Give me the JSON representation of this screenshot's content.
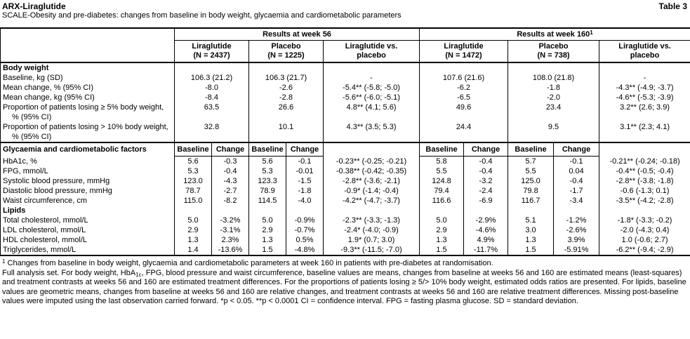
{
  "header": {
    "title": "ARX-Liraglutide",
    "table_label": "Table 3",
    "subtitle": "SCALE-Obesity and pre-diabetes: changes from baseline in body weight, glycaemia and cardiometabolic parameters"
  },
  "table": {
    "groups": [
      {
        "label": "Results at week 56",
        "sup": ""
      },
      {
        "label": "Results at week 160",
        "sup": "1"
      }
    ],
    "columns": [
      {
        "line1": "Liraglutide",
        "line2": "(N = 2437)"
      },
      {
        "line1": "Placebo",
        "line2": "(N = 1225)"
      },
      {
        "line1": "Liraglutide vs.",
        "line2": "placebo"
      },
      {
        "line1": "Liraglutide",
        "line2": "(N = 1472)"
      },
      {
        "line1": "Placebo",
        "line2": "(N = 738)"
      },
      {
        "line1": "Liraglutide vs.",
        "line2": "placebo"
      }
    ],
    "rows": [
      {
        "type": "section",
        "layout": "wide",
        "label": "Body weight",
        "cells": [
          "",
          "",
          "",
          "",
          "",
          ""
        ]
      },
      {
        "type": "data",
        "layout": "wide",
        "label": "Baseline, kg (SD)",
        "cells": [
          "106.3 (21.2)",
          "106.3 (21.7)",
          "-",
          "107.6 (21.6)",
          "108.0 (21.8)",
          "-"
        ]
      },
      {
        "type": "data",
        "layout": "wide",
        "label": "Mean change, % (95% CI)",
        "cells": [
          "-8.0",
          "-2.6",
          "-5.4** (-5.8; -5.0)",
          "-6.2",
          "-1.8",
          "-4.3** (-4.9; -3.7)"
        ]
      },
      {
        "type": "data",
        "layout": "wide",
        "label": "Mean change, kg (95% CI)",
        "cells": [
          "-8.4",
          "-2.8",
          "-5.6** (-6.0; -5.1)",
          "-6.5",
          "-2.0",
          "-4.6** (-5.3; -3.9)"
        ]
      },
      {
        "type": "data",
        "layout": "wide",
        "hang": true,
        "label": "Proportion of patients losing ≥ 5% body weight, % (95% CI)",
        "cells": [
          "63.5",
          "26.6",
          "4.8** (4.1; 5.6)",
          "49.6",
          "23.4",
          "3.2** (2.6; 3.9)"
        ]
      },
      {
        "type": "data",
        "layout": "wide",
        "hang": true,
        "label": "Proportion of patients losing > 10% body weight, % (95% CI)",
        "cells": [
          "32.8",
          "10.1",
          "4.3** (3.5; 5.3)",
          "24.4",
          "9.5",
          "3.1** (2.3; 4.1)"
        ]
      },
      {
        "type": "subhead",
        "layout": "split",
        "label": "Glycaemia and cardiometabolic factors",
        "cells": [
          "Baseline",
          "Change",
          "Baseline",
          "Change",
          "",
          "Baseline",
          "Change",
          "Baseline",
          "Change",
          ""
        ]
      },
      {
        "type": "data",
        "layout": "split",
        "label": "HbA1c, %",
        "cells": [
          "5.6",
          "-0.3",
          "5.6",
          "-0.1",
          "-0.23** (-0.25; -0.21)",
          "5.8",
          "-0.4",
          "5.7",
          "-0.1",
          "-0.21** (-0.24; -0.18)"
        ]
      },
      {
        "type": "data",
        "layout": "split",
        "label": "FPG, mmol/L",
        "cells": [
          "5.3",
          "-0.4",
          "5.3",
          "-0.01",
          "-0.38** (-0.42; -0.35)",
          "5.5",
          "-0.4",
          "5.5",
          "0.04",
          "-0.4** (-0.5; -0.4)"
        ]
      },
      {
        "type": "data",
        "layout": "split",
        "label": "Systolic blood pressure, mmHg",
        "cells": [
          "123.0",
          "-4.3",
          "123.3",
          "-1.5",
          "-2.8** (-3.6; -2.1)",
          "124.8",
          "-3.2",
          "125.0",
          "-0.4",
          "-2.8** (-3.8; -1.8)"
        ]
      },
      {
        "type": "data",
        "layout": "split",
        "label": "Diastolic blood pressure, mmHg",
        "cells": [
          "78.7",
          "-2.7",
          "78.9",
          "-1.8",
          "-0.9* (-1.4; -0.4)",
          "79.4",
          "-2.4",
          "79.8",
          "-1.7",
          "-0.6 (-1.3; 0.1)"
        ]
      },
      {
        "type": "data",
        "layout": "split",
        "label": "Waist circumference, cm",
        "cells": [
          "115.0",
          "-8.2",
          "114.5",
          "-4.0",
          "-4.2** (-4.7; -3.7)",
          "116.6",
          "-6.9",
          "116.7",
          "-3.4",
          "-3.5** (-4.2; -2.8)"
        ]
      },
      {
        "type": "section",
        "layout": "split",
        "label": "Lipids",
        "cells": [
          "",
          "",
          "",
          "",
          "",
          "",
          "",
          "",
          "",
          ""
        ]
      },
      {
        "type": "data",
        "layout": "split",
        "label": "Total cholesterol, mmol/L",
        "cells": [
          "5.0",
          "-3.2%",
          "5.0",
          "-0.9%",
          "-2.3** (-3.3; -1.3)",
          "5.0",
          "-2.9%",
          "5.1",
          "-1.2%",
          "-1.8* (-3.3; -0.2)"
        ]
      },
      {
        "type": "data",
        "layout": "split",
        "label": "LDL cholesterol, mmol/L",
        "cells": [
          "2.9",
          "-3.1%",
          "2.9",
          "-0.7%",
          "-2.4* (-4.0; -0.9)",
          "2.9",
          "-4.6%",
          "3.0",
          "-2.6%",
          "-2.0 (-4.3; 0.4)"
        ]
      },
      {
        "type": "data",
        "layout": "split",
        "label": "HDL cholesterol, mmol/L",
        "cells": [
          "1.3",
          "2.3%",
          "1.3",
          "0.5%",
          "1.9* (0.7; 3.0)",
          "1.3",
          "4.9%",
          "1.3",
          "3.9%",
          "1.0 (-0.6; 2.7)"
        ]
      },
      {
        "type": "data",
        "layout": "split",
        "label": "Triglycerides, mmol/L",
        "cells": [
          "1.4",
          "-13.6%",
          "1.5",
          "-4.8%",
          "-9.3** (-11.5; -7.0)",
          "1.5",
          "-11.7%",
          "1.5",
          "-5.91%",
          "-6.2** (-9.4; -2.9)"
        ]
      }
    ]
  },
  "footnote": {
    "marker": "1",
    "line1": " Changes from baseline in body weight, glycaemia and cardiometabolic parameters at week 160 in patients with pre-diabetes at randomisation.",
    "body_pre": "Full analysis set. For body weight, HbA",
    "body_sub": "1c",
    "body_post": ", FPG, blood pressure and waist circumference, baseline values are means, changes from baseline at weeks 56 and 160 are estimated means (least-squares) and treatment contrasts at weeks 56 and 160 are estimated treatment differences. For the proportions of patients losing ≥ 5/> 10% body weight, estimated odds ratios are presented. For lipids, baseline values are geometric means, changes from baseline at weeks 56 and 160 are relative changes, and treatment contrasts at weeks 56 and 160 are relative treatment differences. Missing post-baseline values were imputed using the last observation carried forward. *p < 0.05. **p < 0.0001 CI = confidence interval. FPG = fasting plasma glucose. SD = standard deviation."
  }
}
